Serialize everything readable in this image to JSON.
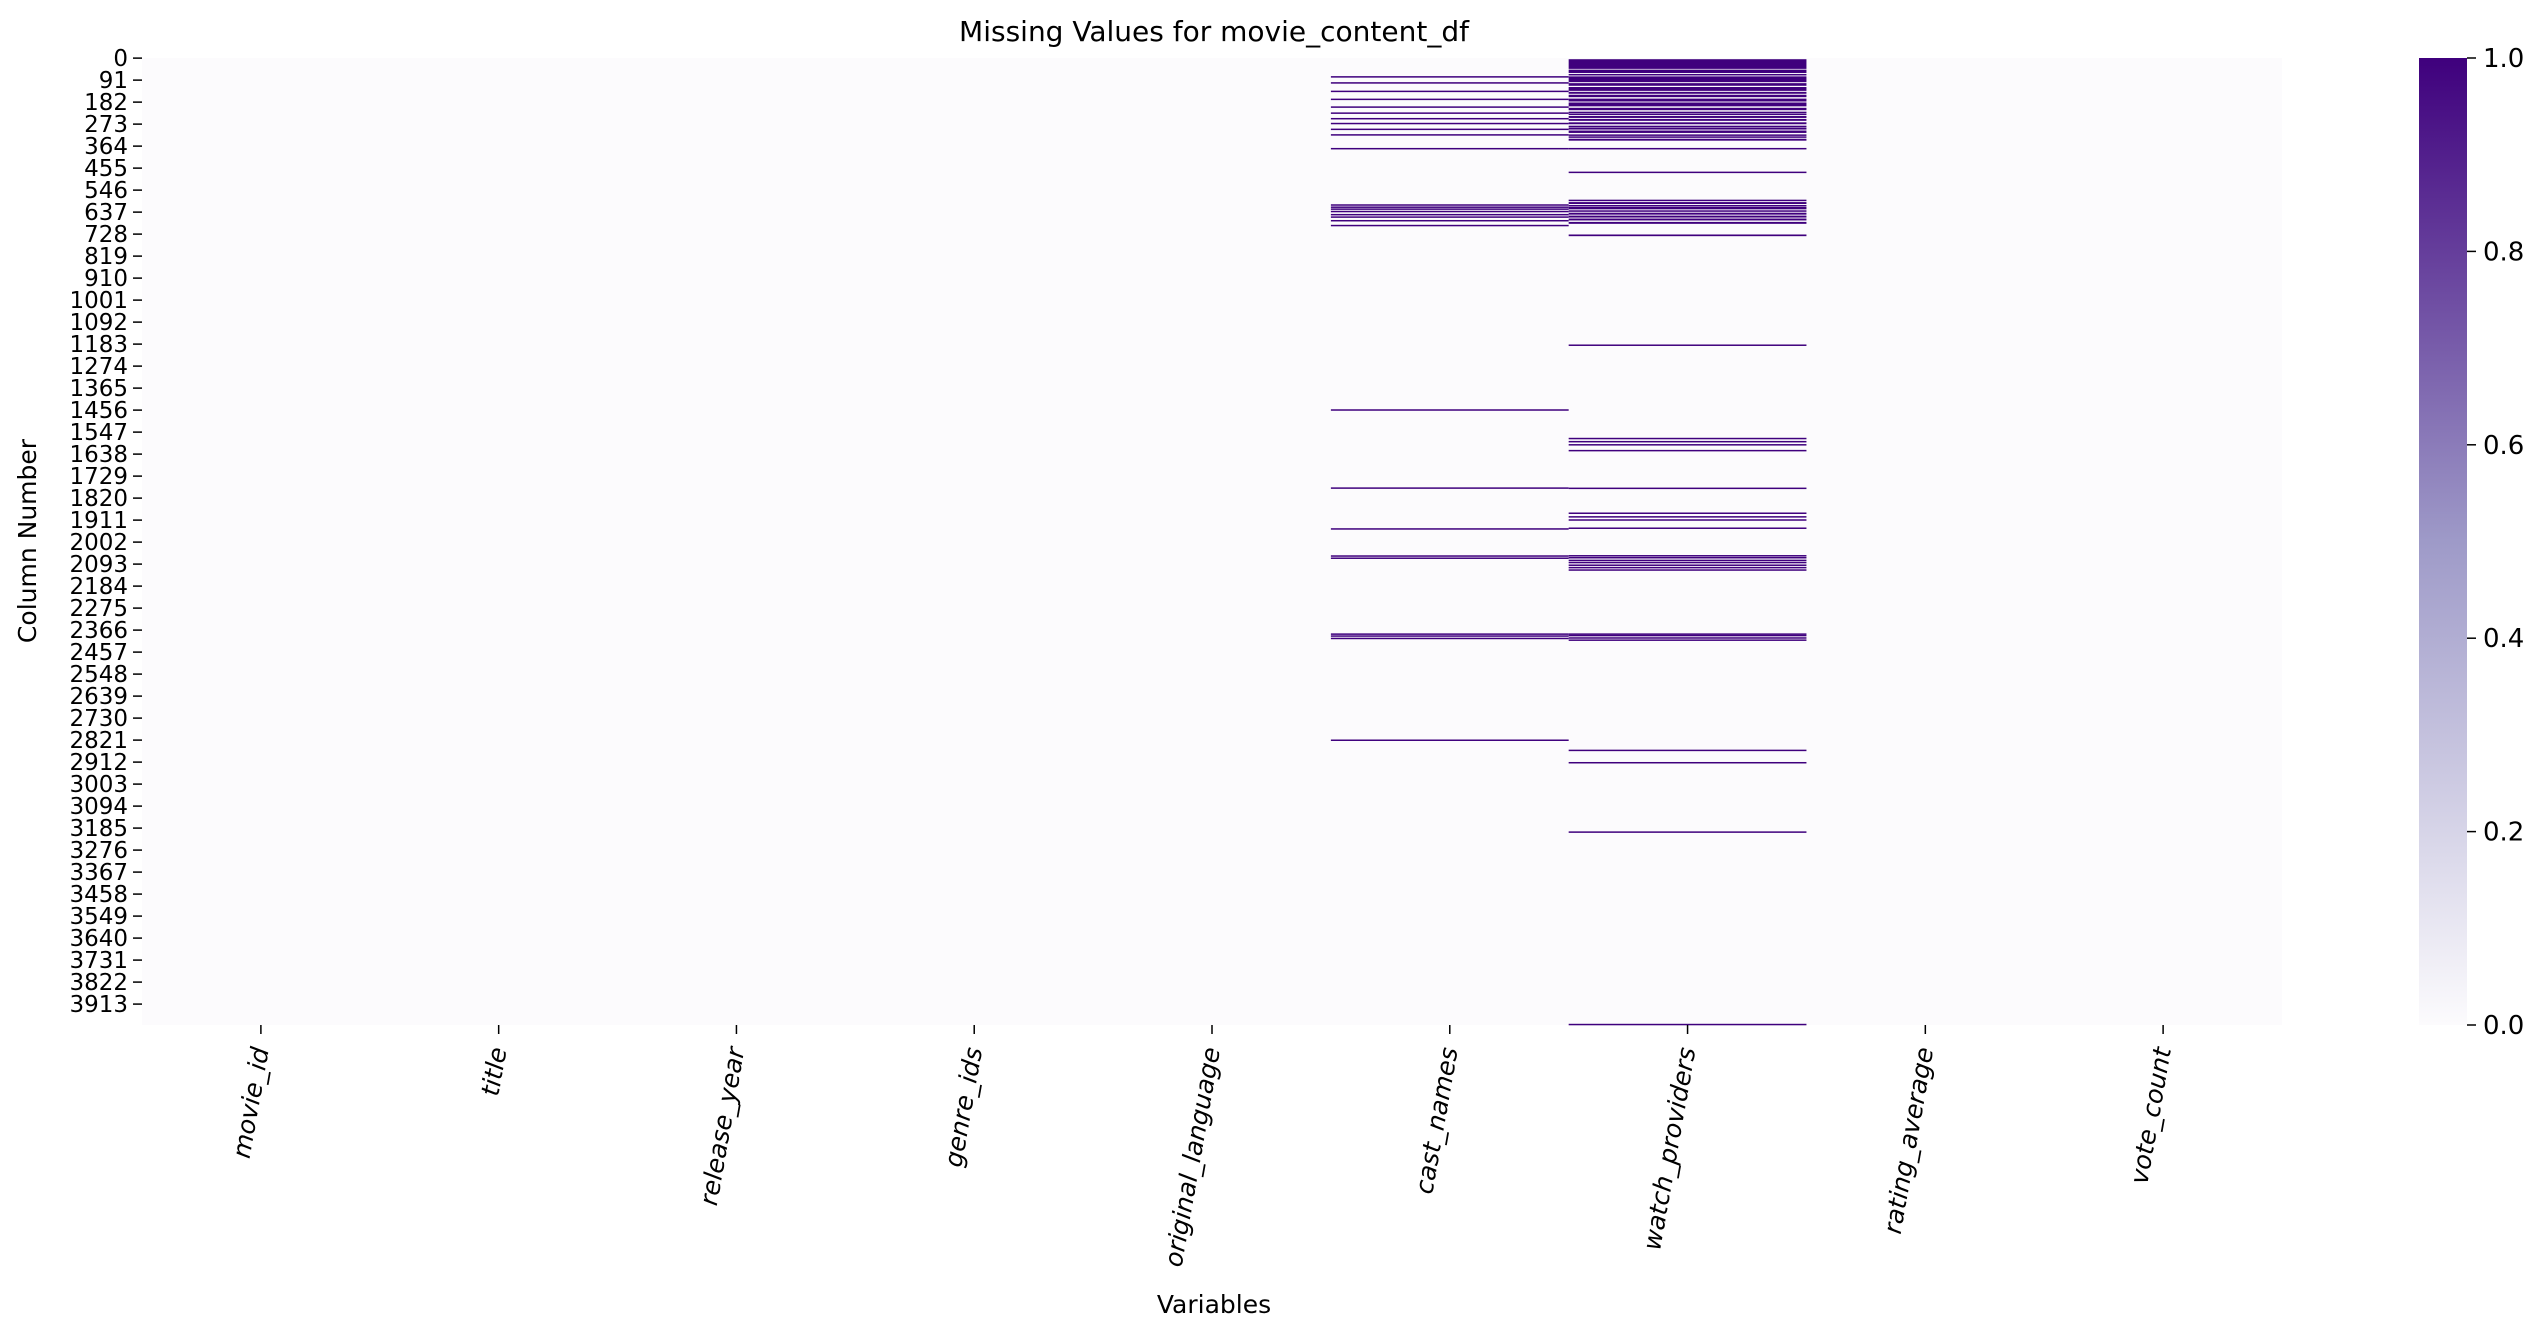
{
  "chart_data": {
    "type": "heatmap",
    "title": "Missing Values for movie_content_df",
    "xlabel": "Variables",
    "ylabel": "Column Number",
    "columns": [
      "movie_id",
      "title",
      "release_year",
      "genre_ids",
      "original_language",
      "cast_names",
      "watch_providers",
      "rating_average",
      "vote_count"
    ],
    "row_count": 4000,
    "row_ticks": [
      0,
      91,
      182,
      273,
      364,
      455,
      546,
      637,
      728,
      819,
      910,
      1001,
      1092,
      1183,
      1274,
      1365,
      1456,
      1547,
      1638,
      1729,
      1820,
      1911,
      2002,
      2093,
      2184,
      2275,
      2366,
      2457,
      2548,
      2639,
      2730,
      2821,
      2912,
      3003,
      3094,
      3185,
      3276,
      3367,
      3458,
      3549,
      3640,
      3731,
      3822,
      3913
    ],
    "value_range": [
      0.0,
      1.0
    ],
    "colormap": {
      "low": "#fcfbfd",
      "mid": "#9e9ac8",
      "high": "#3f007d"
    },
    "colorbar_ticks": [
      "0.0",
      "0.2",
      "0.4",
      "0.6",
      "0.8",
      "1.0"
    ],
    "missing_rows": {
      "cast_names": [
        [
          75,
          77
        ],
        [
          100,
          102
        ],
        [
          135,
          137
        ],
        [
          168,
          170
        ],
        [
          200,
          202
        ],
        [
          225,
          228
        ],
        [
          248,
          251
        ],
        [
          268,
          271
        ],
        [
          292,
          295
        ],
        [
          315,
          318
        ],
        [
          372,
          375
        ],
        [
          605,
          610
        ],
        [
          614,
          618
        ],
        [
          622,
          626
        ],
        [
          632,
          637
        ],
        [
          645,
          649
        ],
        [
          655,
          658
        ],
        [
          670,
          674
        ],
        [
          690,
          693
        ],
        [
          1453,
          1456
        ],
        [
          1776,
          1778
        ],
        [
          1945,
          1948
        ],
        [
          2057,
          2062
        ],
        [
          2066,
          2071
        ],
        [
          2380,
          2382
        ],
        [
          2388,
          2391
        ],
        [
          2398,
          2404
        ],
        [
          2819,
          2822
        ]
      ],
      "watch_providers": [
        [
          5,
          45
        ],
        [
          48,
          62
        ],
        [
          66,
          72
        ],
        [
          76,
          100
        ],
        [
          104,
          115
        ],
        [
          120,
          136
        ],
        [
          140,
          148
        ],
        [
          152,
          162
        ],
        [
          168,
          180
        ],
        [
          184,
          200
        ],
        [
          206,
          216
        ],
        [
          222,
          226
        ],
        [
          230,
          236
        ],
        [
          240,
          248
        ],
        [
          252,
          260
        ],
        [
          266,
          274
        ],
        [
          280,
          284
        ],
        [
          288,
          296
        ],
        [
          300,
          310
        ],
        [
          316,
          320
        ],
        [
          324,
          330
        ],
        [
          334,
          342
        ],
        [
          372,
          376
        ],
        [
          470,
          475
        ],
        [
          586,
          592
        ],
        [
          596,
          604
        ],
        [
          608,
          612
        ],
        [
          616,
          626
        ],
        [
          630,
          636
        ],
        [
          640,
          648
        ],
        [
          652,
          660
        ],
        [
          664,
          672
        ],
        [
          678,
          686
        ],
        [
          730,
          737
        ],
        [
          1185,
          1188
        ],
        [
          1571,
          1574
        ],
        [
          1584,
          1587
        ],
        [
          1597,
          1600
        ],
        [
          1621,
          1624
        ],
        [
          1777,
          1780
        ],
        [
          1880,
          1883
        ],
        [
          1895,
          1898
        ],
        [
          1908,
          1911
        ],
        [
          1942,
          1945
        ],
        [
          2056,
          2060
        ],
        [
          2064,
          2070
        ],
        [
          2075,
          2080
        ],
        [
          2084,
          2090
        ],
        [
          2095,
          2100
        ],
        [
          2105,
          2110
        ],
        [
          2115,
          2120
        ],
        [
          2380,
          2383
        ],
        [
          2386,
          2392
        ],
        [
          2396,
          2402
        ],
        [
          2405,
          2408
        ],
        [
          2861,
          2864
        ],
        [
          2912,
          2915
        ],
        [
          3199,
          3202
        ],
        [
          3995,
          3998
        ]
      ]
    }
  }
}
